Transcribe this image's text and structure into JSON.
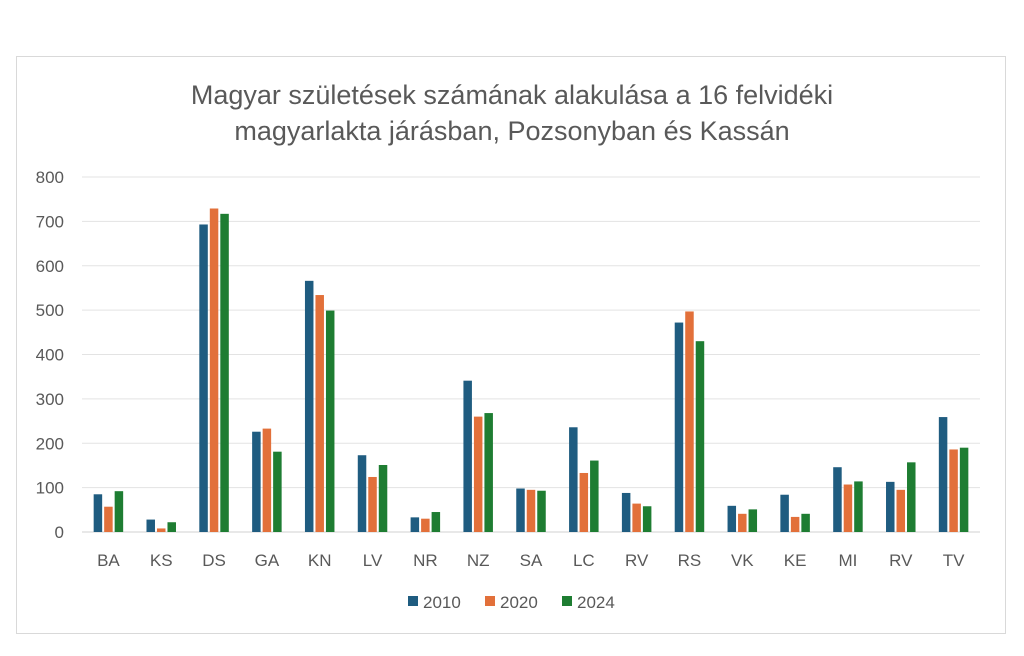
{
  "chart_data": {
    "type": "bar",
    "title_lines": [
      "Magyar születések számának alakulása a 16 felvidéki",
      "magyarlakta járásban, Pozsonyban és Kassán"
    ],
    "categories": [
      "BA",
      "KS",
      "DS",
      "GA",
      "KN",
      "LV",
      "NR",
      "NZ",
      "SA",
      "LC",
      "RV",
      "RS",
      "VK",
      "KE",
      "MI",
      "RV",
      "TV"
    ],
    "series": [
      {
        "name": "2010",
        "color": "#1f5c80",
        "values": [
          85,
          28,
          693,
          226,
          566,
          173,
          33,
          341,
          98,
          236,
          88,
          472,
          59,
          84,
          146,
          113,
          259
        ]
      },
      {
        "name": "2020",
        "color": "#e2703a",
        "values": [
          57,
          8,
          729,
          233,
          534,
          124,
          30,
          260,
          95,
          133,
          64,
          497,
          41,
          34,
          107,
          95,
          186
        ]
      },
      {
        "name": "2024",
        "color": "#1e7d32",
        "values": [
          92,
          22,
          717,
          181,
          499,
          151,
          45,
          268,
          93,
          161,
          58,
          430,
          51,
          41,
          114,
          157,
          190
        ]
      }
    ],
    "ylim": [
      0,
      800
    ],
    "yticks": [
      0,
      100,
      200,
      300,
      400,
      500,
      600,
      700,
      800
    ],
    "grid": true,
    "legend_position": "bottom"
  }
}
